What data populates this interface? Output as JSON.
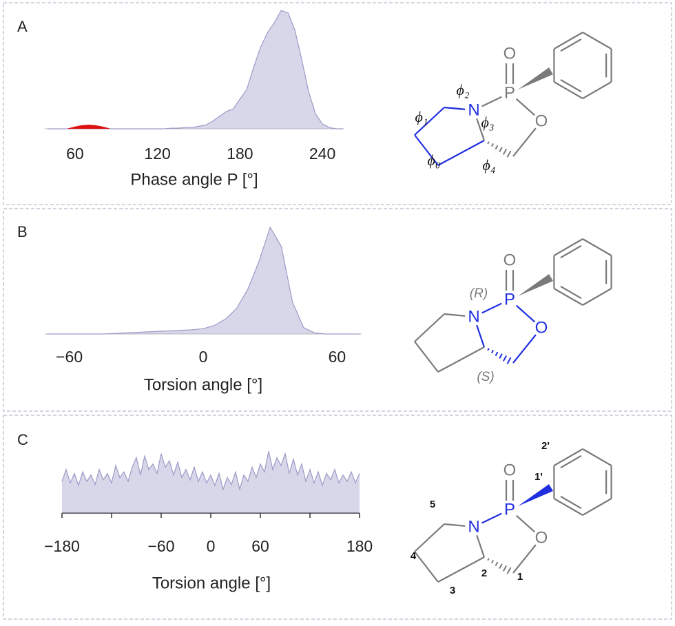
{
  "chart_data": [
    {
      "type": "area",
      "panel_label": "A",
      "xlabel": "Phase angle P [°]",
      "xlim": [
        38,
        256
      ],
      "xticks": [
        60,
        120,
        180,
        240
      ],
      "ylim": [
        0,
        100
      ],
      "series": [
        {
          "color": "#9a9ac8",
          "x": [
            40,
            45,
            50,
            55,
            60,
            65,
            70,
            75,
            80,
            85,
            90,
            95,
            100,
            105,
            110,
            115,
            120,
            125,
            130,
            135,
            140,
            145,
            150,
            155,
            160,
            165,
            170,
            175,
            180,
            185,
            190,
            195,
            200,
            205,
            210,
            215,
            220,
            225,
            230,
            235,
            240,
            245,
            250,
            255
          ],
          "values": [
            0,
            0,
            0,
            0,
            0,
            0,
            0,
            0,
            0,
            0,
            0,
            0,
            0,
            0,
            0,
            0,
            0,
            0,
            0.5,
            0.5,
            1,
            1,
            2,
            3,
            6,
            10,
            14,
            16,
            24,
            32,
            50,
            66,
            78,
            86,
            96,
            94,
            80,
            56,
            30,
            12,
            4,
            1,
            0,
            0
          ]
        },
        {
          "color": "#e01010",
          "x": [
            55,
            60,
            65,
            70,
            75,
            80,
            85
          ],
          "values": [
            0,
            1.5,
            2.5,
            3,
            2.5,
            1.5,
            0
          ]
        }
      ]
    },
    {
      "type": "area",
      "panel_label": "B",
      "xlabel": "Torsion angle [°]",
      "xlim": [
        -71,
        71
      ],
      "xticks": [
        {
          "value": -60,
          "label": "−60"
        },
        0,
        60
      ],
      "ylim": [
        0,
        100
      ],
      "series": [
        {
          "color": "#9a9ac8",
          "x": [
            -70,
            -65,
            -60,
            -55,
            -50,
            -45,
            -40,
            -35,
            -30,
            -25,
            -20,
            -15,
            -10,
            -5,
            0,
            5,
            10,
            15,
            20,
            25,
            30,
            35,
            40,
            45,
            50,
            55,
            60,
            65,
            70
          ],
          "values": [
            0,
            0,
            0,
            0,
            0,
            0,
            0.5,
            1,
            1.5,
            2,
            2.5,
            3,
            3.5,
            4,
            5,
            8,
            14,
            24,
            42,
            68,
            100,
            82,
            30,
            6,
            1,
            0,
            0,
            0,
            0
          ]
        }
      ]
    },
    {
      "type": "area",
      "panel_label": "C",
      "xlabel": "Torsion angle [°]",
      "xlim": [
        -180,
        180
      ],
      "xticks": [
        {
          "value": -180,
          "label": "−180"
        },
        {
          "value": -60,
          "label": "−60"
        },
        0,
        60,
        180
      ],
      "minor_xticks": [
        -120,
        120
      ],
      "ylim": [
        0,
        100
      ],
      "axis_line": true,
      "series": [
        {
          "color": "#9a9ac8",
          "x": [
            -180,
            -175,
            -170,
            -165,
            -160,
            -155,
            -150,
            -145,
            -140,
            -135,
            -130,
            -125,
            -120,
            -115,
            -110,
            -105,
            -100,
            -95,
            -90,
            -85,
            -80,
            -75,
            -70,
            -65,
            -60,
            -55,
            -50,
            -45,
            -40,
            -35,
            -30,
            -25,
            -20,
            -15,
            -10,
            -5,
            0,
            5,
            10,
            15,
            20,
            25,
            30,
            35,
            40,
            45,
            50,
            55,
            60,
            65,
            70,
            75,
            80,
            85,
            90,
            95,
            100,
            105,
            110,
            115,
            120,
            125,
            130,
            135,
            140,
            145,
            150,
            155,
            160,
            165,
            170,
            175,
            180
          ],
          "values": [
            40,
            55,
            38,
            50,
            35,
            52,
            40,
            48,
            36,
            55,
            42,
            50,
            38,
            60,
            45,
            52,
            40,
            58,
            70,
            48,
            72,
            55,
            62,
            50,
            75,
            58,
            66,
            48,
            64,
            45,
            55,
            42,
            58,
            40,
            52,
            38,
            48,
            35,
            50,
            30,
            45,
            36,
            52,
            30,
            48,
            40,
            58,
            45,
            62,
            52,
            78,
            55,
            70,
            60,
            75,
            50,
            68,
            48,
            62,
            40,
            55,
            38,
            52,
            35,
            50,
            42,
            55,
            38,
            48,
            40,
            52,
            38,
            50
          ]
        }
      ]
    }
  ],
  "structures": [
    {
      "atoms": [
        "O",
        "P",
        "N",
        "O"
      ],
      "labels": [
        "ϕ₂",
        "ϕ₁",
        "ϕ₃",
        "ϕ₀",
        "ϕ₄"
      ]
    },
    {
      "atoms": [
        "O",
        "P",
        "N",
        "O"
      ],
      "labels": [
        "(R)",
        "(S)"
      ]
    },
    {
      "atoms": [
        "O",
        "P",
        "N",
        "O"
      ],
      "labels": [
        "2'",
        "1'",
        "5",
        "4",
        "3",
        "2",
        "1"
      ]
    }
  ]
}
